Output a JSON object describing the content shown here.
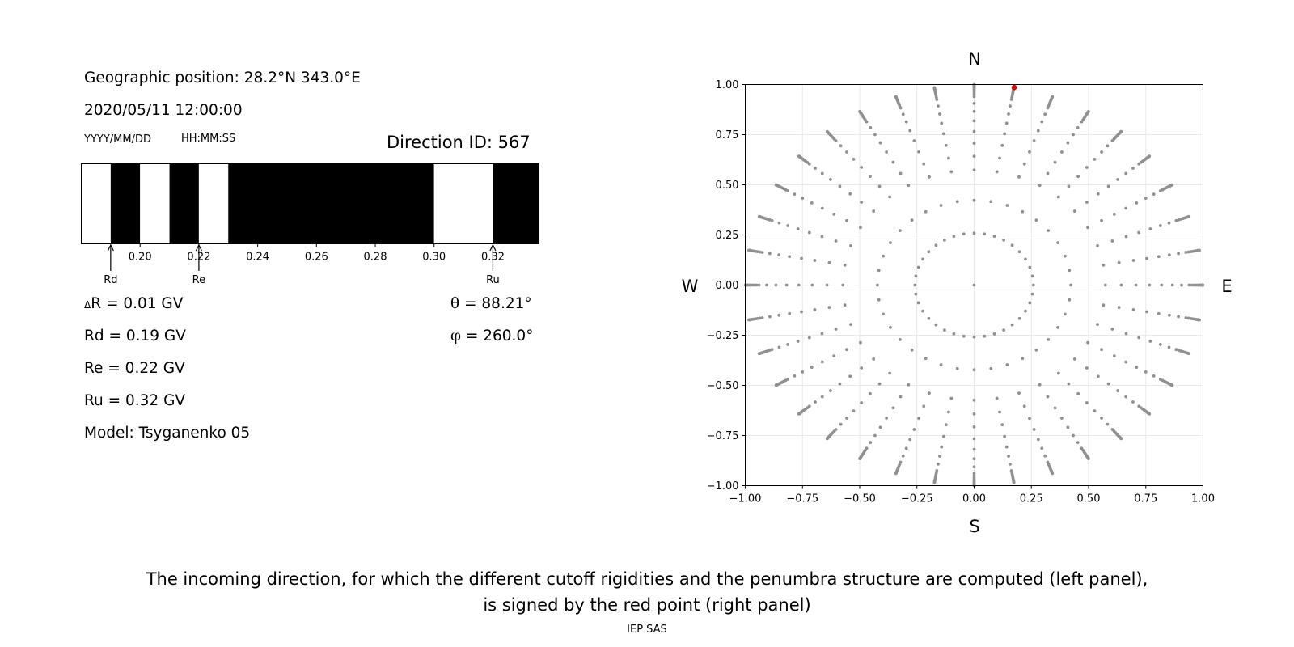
{
  "left_panel": {
    "geo_position": "Geographic position: 28.2°N 343.0°E",
    "datetime": "2020/05/11 12:00:00",
    "date_format": "YYYY/MM/DD",
    "time_format": "HH:MM:SS",
    "direction_id": "Direction ID: 567",
    "delta_r_symbol": "Δ",
    "delta_r": "R = 0.01 GV",
    "rd": "Rd = 0.19 GV",
    "re": "Re = 0.22 GV",
    "ru": "Ru = 0.32 GV",
    "model": "Model: Tsyganenko 05",
    "theta_symbol": "θ",
    "theta": "= 88.21°",
    "phi_symbol": "φ",
    "phi": "= 260.0°"
  },
  "chart_data": [
    {
      "type": "penumbra-bar",
      "xlim": [
        0.18,
        0.3357
      ],
      "xticks": [
        "0.20",
        "0.22",
        "0.24",
        "0.26",
        "0.28",
        "0.30",
        "0.32"
      ],
      "tick_values": [
        0.2,
        0.22,
        0.24,
        0.26,
        0.28,
        0.3,
        0.32
      ],
      "segments": [
        {
          "from": 0.18,
          "to": 0.19,
          "state": "allowed",
          "color": "#ffffff"
        },
        {
          "from": 0.19,
          "to": 0.2,
          "state": "forbidden",
          "color": "#000000"
        },
        {
          "from": 0.2,
          "to": 0.21,
          "state": "allowed",
          "color": "#ffffff"
        },
        {
          "from": 0.21,
          "to": 0.22,
          "state": "forbidden",
          "color": "#000000"
        },
        {
          "from": 0.22,
          "to": 0.23,
          "state": "allowed",
          "color": "#ffffff"
        },
        {
          "from": 0.23,
          "to": 0.3,
          "state": "forbidden",
          "color": "#000000"
        },
        {
          "from": 0.3,
          "to": 0.32,
          "state": "allowed",
          "color": "#ffffff"
        },
        {
          "from": 0.32,
          "to": 0.3357,
          "state": "forbidden",
          "color": "#000000"
        }
      ],
      "markers": [
        {
          "label": "Rd",
          "value": 0.19
        },
        {
          "label": "Re",
          "value": 0.22
        },
        {
          "label": "Ru",
          "value": 0.32
        }
      ]
    },
    {
      "type": "scatter",
      "xlim": [
        -1.0,
        1.0
      ],
      "ylim": [
        -1.0,
        1.0
      ],
      "xticks": [
        "−1.00",
        "−0.75",
        "−0.50",
        "−0.25",
        "0.00",
        "0.25",
        "0.50",
        "0.75",
        "1.00"
      ],
      "yticks": [
        "1.00",
        "0.75",
        "0.50",
        "0.25",
        "0.00",
        "−0.25",
        "−0.50",
        "−0.75",
        "−1.00"
      ],
      "tick_values": [
        -1.0,
        -0.75,
        -0.5,
        -0.25,
        0.0,
        0.25,
        0.5,
        0.75,
        1.0
      ],
      "grid": true,
      "compass": {
        "north": "N",
        "south": "S",
        "west": "W",
        "east": "E"
      },
      "directions_grid": {
        "zenith_steps_deg": [
          0,
          15,
          25,
          35,
          40,
          45,
          50,
          55,
          60,
          65,
          70,
          72,
          74,
          76,
          78,
          80,
          82,
          84,
          86,
          88,
          90
        ],
        "azimuth_step_deg": 10,
        "theta_offset": 0.004,
        "color": "#909090"
      },
      "highlight": {
        "x": 0.175,
        "y": 0.985,
        "color": "#e00000"
      }
    }
  ],
  "caption": {
    "line1": "The incoming direction, for which the different cutoff rigidities and the penumbra structure are computed (left panel),",
    "line2": "is signed by the red point (right panel)"
  },
  "footer": "IEP SAS"
}
